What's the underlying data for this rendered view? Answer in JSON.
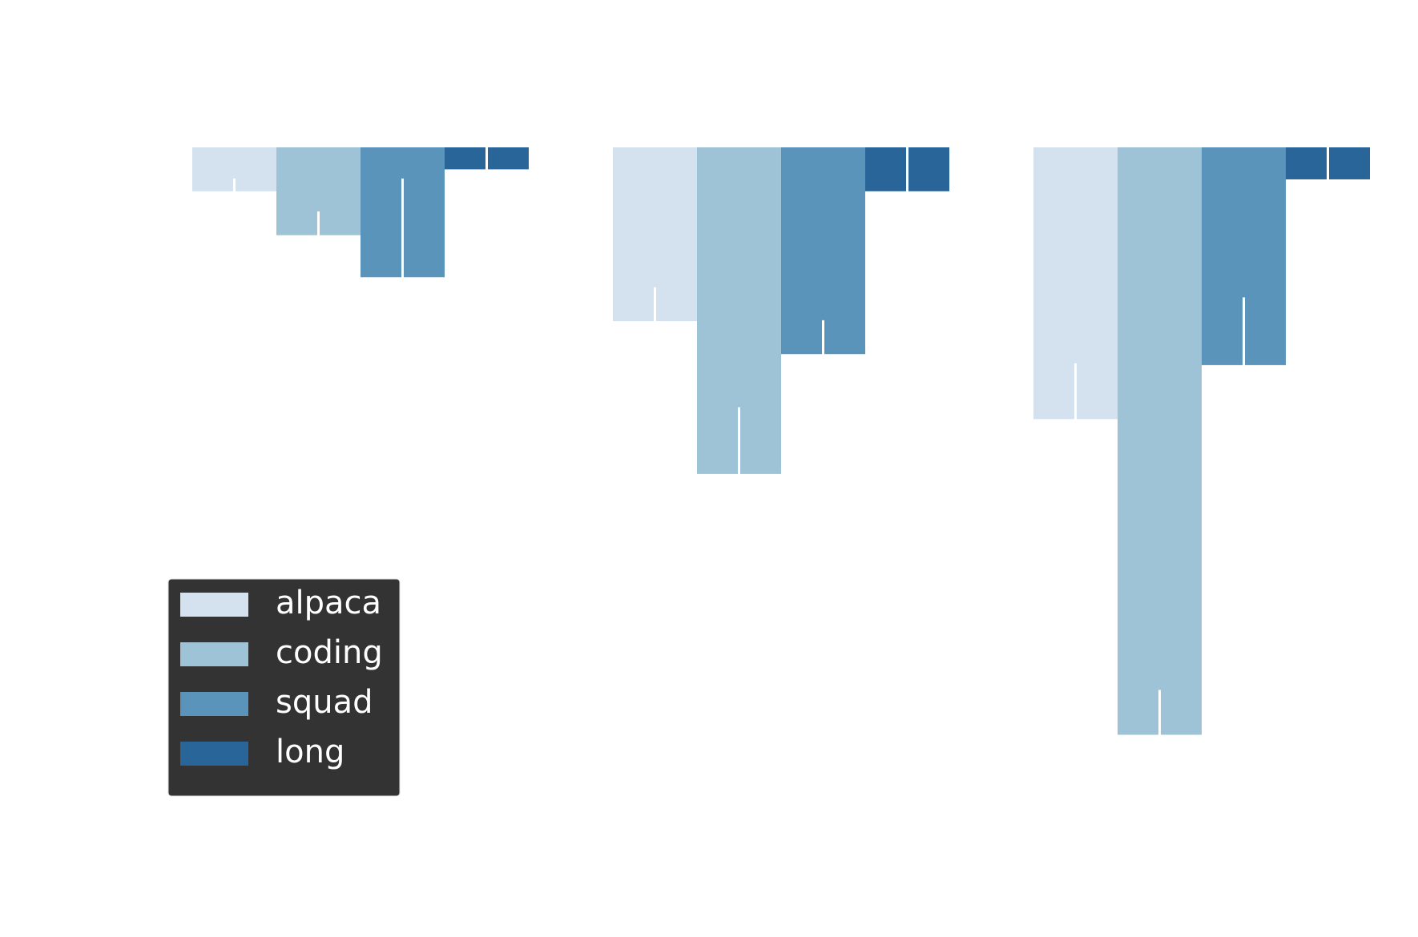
{
  "chart_data": {
    "type": "bar",
    "categories": [
      null,
      null,
      null
    ],
    "series": [
      {
        "name": "alpaca",
        "color": "#d4e2ef",
        "values": [
          48,
          190,
          297
        ],
        "errors": [
          14,
          37,
          61
        ]
      },
      {
        "name": "coding",
        "color": "#9ec2d6",
        "values": [
          96,
          357,
          642
        ],
        "errors": [
          26,
          73,
          49
        ]
      },
      {
        "name": "squad",
        "color": "#5a94ba",
        "values": [
          142,
          226,
          238
        ],
        "errors": [
          108,
          37,
          74
        ]
      },
      {
        "name": "long",
        "color": "#2a6599",
        "values": [
          24,
          48,
          35
        ],
        "errors": [
          24,
          48,
          35
        ]
      }
    ],
    "ylim": [
      0,
      800
    ],
    "inverted": true,
    "legend": "lower left"
  }
}
